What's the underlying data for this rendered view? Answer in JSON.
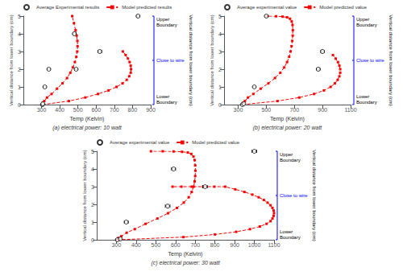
{
  "chart_data": [
    {
      "type": "line",
      "title": "(a) electrical power: 10 watt",
      "xlabel": "Temp (Kelvin)",
      "ylabel": "Vertical distance from lower boundary (cm)",
      "xlim": [
        200,
        900
      ],
      "xticks": [
        300,
        400,
        500,
        600,
        700,
        800,
        900
      ],
      "ylim": [
        0,
        5
      ],
      "yticks": [
        0,
        1,
        2,
        3,
        4,
        5
      ],
      "grid": false,
      "legend": "top",
      "series": [
        {
          "name": "Average Experimental results",
          "type": "scatter",
          "color": "black",
          "marker": "circle",
          "x": [
            305,
            307,
            318,
            340,
            490,
            620,
            480,
            830
          ],
          "values": [
            0.0,
            0.05,
            1.0,
            2.0,
            2.0,
            3.0,
            4.0,
            5.0
          ],
          "xerr": [
            8,
            5,
            8,
            8,
            8,
            10,
            8,
            8
          ]
        },
        {
          "name": "Model predicted results",
          "type": "line",
          "color": "red",
          "marker": "square",
          "line_style": "dashed",
          "x": [
            305,
            308,
            315,
            330,
            355,
            385,
            415,
            440,
            458,
            472,
            483,
            491,
            496,
            498,
            497,
            493,
            487,
            478,
            468
          ],
          "values": [
            0.0,
            0.1,
            0.2,
            0.4,
            0.6,
            0.9,
            1.2,
            1.5,
            1.8,
            2.1,
            2.4,
            2.7,
            3.0,
            3.3,
            3.6,
            3.9,
            4.2,
            4.6,
            5.0
          ]
        },
        {
          "name": "Model predicted results",
          "type": "line",
          "color": "red",
          "marker": "square",
          "line_style": "dashed",
          "x": [
            305,
            450,
            540,
            610,
            668,
            712,
            745,
            768,
            782,
            790,
            792,
            790,
            784,
            775,
            762,
            747
          ],
          "values": [
            0.0,
            0.2,
            0.4,
            0.6,
            0.8,
            1.0,
            1.2,
            1.4,
            1.6,
            1.8,
            2.0,
            2.2,
            2.4,
            2.6,
            2.8,
            3.0
          ]
        }
      ],
      "annotations": [
        {
          "text": "Upper\nBoundary",
          "color": "black"
        },
        {
          "text": "Close to wire",
          "color": "blue"
        },
        {
          "text": "Lower\nBoundary",
          "color": "black"
        },
        {
          "text": "Vertical distance from lower boundary (cm)",
          "color": "black"
        }
      ]
    },
    {
      "type": "line",
      "title": "(b) electrical power: 20 watt",
      "xlabel": "Temp (Kelvin)",
      "ylabel": "Vertical distance from lower boundary (cm)",
      "xlim": [
        200,
        1100
      ],
      "xticks": [
        300,
        500,
        700,
        900,
        1100
      ],
      "ylim": [
        0,
        5
      ],
      "yticks": [
        0,
        1,
        2,
        3,
        4,
        5
      ],
      "grid": false,
      "legend": "top",
      "series": [
        {
          "name": "Average experimental value",
          "type": "scatter",
          "color": "black",
          "marker": "circle",
          "x": [
            330,
            340,
            415,
            900,
            870,
            500
          ],
          "values": [
            0.0,
            0.05,
            1.0,
            3.0,
            2.0,
            5.0
          ],
          "xerr": [
            8,
            5,
            8,
            12,
            12,
            8
          ]
        },
        {
          "name": "Model predicted value",
          "type": "line",
          "color": "red",
          "marker": "square",
          "line_style": "dashed",
          "x": [
            330,
            335,
            348,
            370,
            408,
            460,
            515,
            562,
            600,
            628,
            648,
            663,
            673,
            680,
            685,
            688,
            689,
            687,
            681,
            669,
            648,
            616,
            570,
            510
          ],
          "values": [
            0.0,
            0.1,
            0.2,
            0.4,
            0.6,
            0.9,
            1.2,
            1.5,
            1.8,
            2.1,
            2.4,
            2.7,
            3.0,
            3.3,
            3.6,
            3.9,
            4.2,
            4.5,
            4.7,
            4.85,
            4.93,
            4.97,
            4.99,
            5.0
          ]
        },
        {
          "name": "Model predicted value",
          "type": "line",
          "color": "red",
          "marker": "square",
          "line_style": "dashed",
          "x": [
            330,
            580,
            735,
            840,
            910,
            958,
            988,
            1008,
            1020,
            1026,
            1026,
            1020,
            1010,
            994,
            974
          ],
          "values": [
            0.0,
            0.2,
            0.4,
            0.6,
            0.8,
            1.0,
            1.2,
            1.4,
            1.6,
            1.8,
            2.0,
            2.2,
            2.4,
            2.6,
            2.8
          ]
        }
      ],
      "annotations": [
        {
          "text": "Upper\nBoundary",
          "color": "black"
        },
        {
          "text": "Close to wire",
          "color": "blue"
        },
        {
          "text": "Lower\nBoundary",
          "color": "black"
        },
        {
          "text": "Vertical distance from lower boundary (cm)",
          "color": "black"
        }
      ]
    },
    {
      "type": "line",
      "title": "(c) electrical power: 30 watt",
      "xlabel": "Temp (Kelvin)",
      "ylabel": "Vertical distance from lower boundary (cm)",
      "xlim": [
        200,
        1100
      ],
      "xticks": [
        300,
        400,
        500,
        600,
        700,
        800,
        900,
        1000,
        1100
      ],
      "ylim": [
        0,
        5
      ],
      "yticks": [
        0,
        1,
        2,
        3,
        4,
        5
      ],
      "grid": false,
      "legend": "top",
      "series": [
        {
          "name": "Average experimental value",
          "type": "scatter",
          "color": "black",
          "marker": "circle",
          "x": [
            305,
            320,
            350,
            560,
            750,
            1000,
            590
          ],
          "values": [
            0.0,
            0.05,
            1.0,
            1.9,
            3.0,
            5.0,
            4.0
          ],
          "xerr": [
            8,
            5,
            10,
            12,
            12,
            12,
            10
          ]
        },
        {
          "name": "Model predicted value",
          "type": "line",
          "color": "red",
          "marker": "square",
          "line_style": "dashed",
          "x": [
            305,
            310,
            325,
            352,
            393,
            448,
            508,
            562,
            607,
            642,
            667,
            682,
            692,
            697,
            700,
            701,
            700,
            697,
            691,
            680,
            662,
            633,
            590,
            535,
            475
          ],
          "values": [
            0.0,
            0.1,
            0.2,
            0.4,
            0.6,
            0.9,
            1.2,
            1.5,
            1.8,
            2.1,
            2.4,
            2.7,
            3.0,
            3.3,
            3.6,
            3.9,
            4.2,
            4.5,
            4.7,
            4.85,
            4.93,
            4.97,
            4.99,
            5.0,
            5.0
          ]
        },
        {
          "name": "Model predicted value",
          "type": "line",
          "color": "red",
          "marker": "square",
          "line_style": "dashed",
          "x": [
            305,
            640,
            800,
            908,
            978,
            1028,
            1062,
            1082,
            1092,
            1098,
            1100,
            1098,
            1092,
            1082,
            1067,
            1048,
            1022,
            990,
            950,
            903,
            852,
            797,
            740,
            682,
            630,
            585
          ],
          "values": [
            0.0,
            0.15,
            0.3,
            0.45,
            0.6,
            0.75,
            0.9,
            1.05,
            1.2,
            1.35,
            1.5,
            1.65,
            1.8,
            1.95,
            2.1,
            2.25,
            2.4,
            2.55,
            2.7,
            2.85,
            3.0,
            3.0,
            3.0,
            3.0,
            3.0,
            3.0
          ]
        }
      ],
      "annotations": [
        {
          "text": "Upper\nBoundary",
          "color": "black"
        },
        {
          "text": "Close to wire",
          "color": "blue"
        },
        {
          "text": "Lower\nBoundary",
          "color": "black"
        },
        {
          "text": "Vertical distance from lower boundary (cm)",
          "color": "black"
        }
      ]
    }
  ]
}
